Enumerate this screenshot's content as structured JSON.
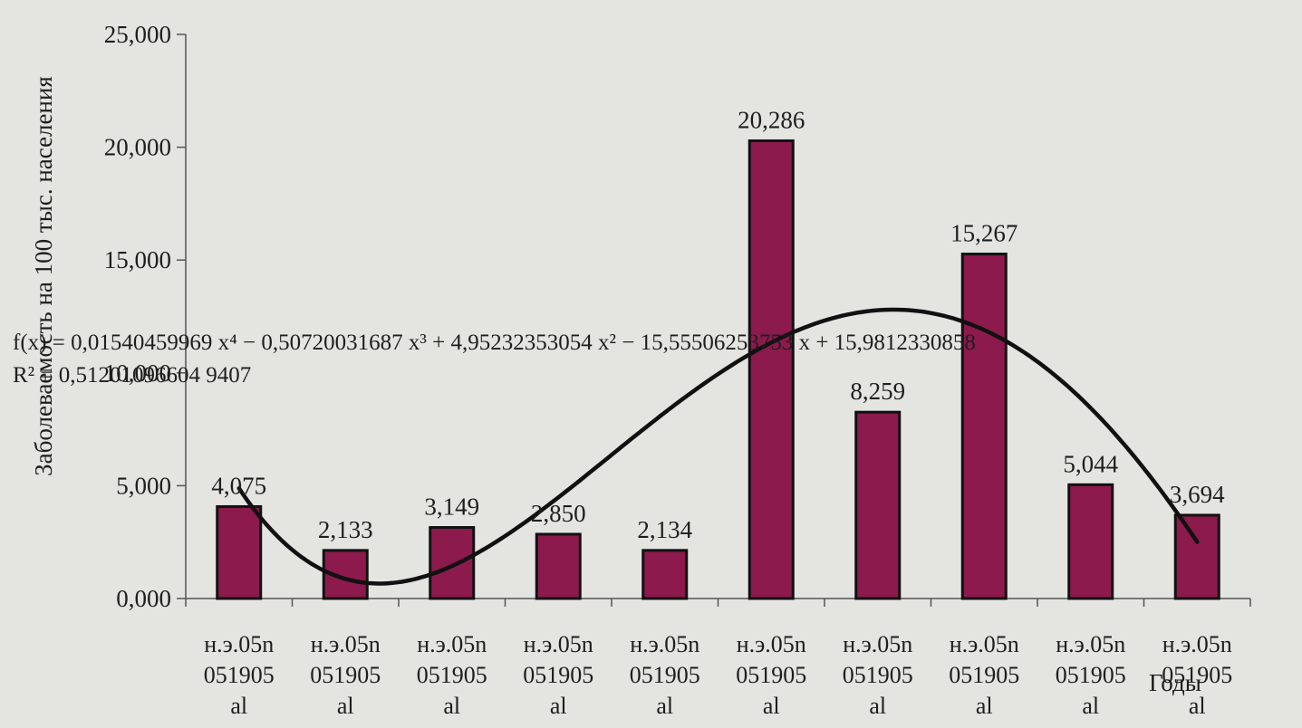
{
  "chart_data": {
    "type": "bar",
    "title": "",
    "ylabel": "Заболеваемость на 100 тыс. населения",
    "xlabel": "Годы",
    "ylim": [
      0,
      25000
    ],
    "yticks": [
      0,
      5000,
      10000,
      15000,
      20000,
      25000
    ],
    "ytick_labels": [
      "0,000",
      "5,000",
      "10,000",
      "15,000",
      "20,000",
      "25,000"
    ],
    "categories": [
      [
        "н.э.05n",
        "051905",
        "al"
      ],
      [
        "н.э.05n",
        "051905",
        "al"
      ],
      [
        "н.э.05n",
        "051905",
        "al"
      ],
      [
        "н.э.05n",
        "051905",
        "al"
      ],
      [
        "н.э.05n",
        "051905",
        "al"
      ],
      [
        "н.э.05n",
        "051905",
        "al"
      ],
      [
        "н.э.05n",
        "051905",
        "al"
      ],
      [
        "н.э.05n",
        "051905",
        "al"
      ],
      [
        "н.э.05n",
        "051905",
        "al"
      ],
      [
        "н.э.05n",
        "051905",
        "al"
      ]
    ],
    "values": [
      4075,
      2133,
      3149,
      2850,
      2134,
      20286,
      8259,
      15267,
      5044,
      3694
    ],
    "data_labels": [
      "4,075",
      "2,133",
      "3,149",
      "2,850",
      "2,134",
      "20,286",
      "8,259",
      "15,267",
      "5,044",
      "3,694"
    ],
    "bar_color": "#8c1a4d",
    "trendline": {
      "type": "polynomial",
      "order": 4,
      "coefficients": [
        0.01540459969,
        -0.50720031687,
        4.95232353054,
        -15.55506253753,
        15.9812330858
      ],
      "equation": "f(x) = 0,01540459969 x⁴ − 0,50720031687 x³ + 4,95232353054 x² − 15,55506253753 x + 15,9812330858",
      "r_squared": "R² = 0,51201096604 9407"
    },
    "grid": false,
    "legend": "none"
  }
}
